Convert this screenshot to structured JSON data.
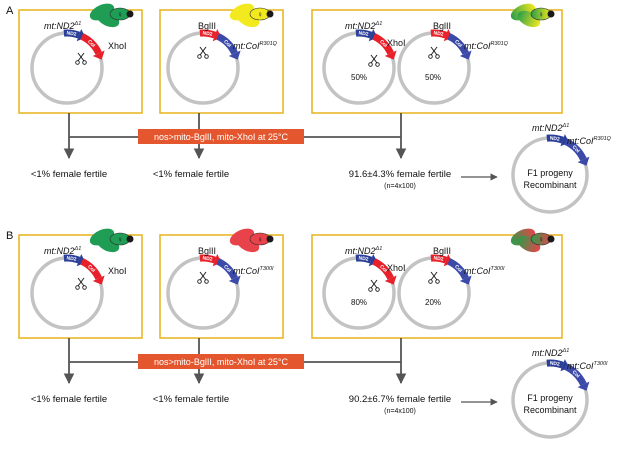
{
  "panels": {
    "A": {
      "label": "A",
      "box1": {
        "gene": "mt:ND2",
        "gene_sup": "del1",
        "site": "XhoI"
      },
      "box2": {
        "site": "BglII",
        "gene": "mt:CoI",
        "gene_sup": "R301Q"
      },
      "box3": {
        "gene_left": "mt:ND2",
        "gene_left_sup": "del1",
        "site_left": "XhoI",
        "site_right": "BglII",
        "gene_right": "mt:CoI",
        "gene_right_sup": "R301Q",
        "pct_left": "50%",
        "pct_right": "50%"
      },
      "banner": "nos>mito-BglII, mito-XhoI at 25°C",
      "outcome1": "<1% female fertile",
      "outcome2": "<1% female fertile",
      "outcome3": "91.6±4.3% female fertile",
      "outcome3_n": "(n=4x100)",
      "recombinant": {
        "gene_top": "mt:ND2",
        "gene_top_sup": "del1",
        "gene_right": "mt:CoI",
        "gene_right_sup": "R301Q",
        "line1": "F1 progeny",
        "line2": "Recombinant"
      }
    },
    "B": {
      "label": "B",
      "box1": {
        "gene": "mt:ND2",
        "gene_sup": "del1",
        "site": "XhoI"
      },
      "box2": {
        "site": "BglII",
        "gene": "mt:CoI",
        "gene_sup": "T300I"
      },
      "box3": {
        "gene_left": "mt:ND2",
        "gene_left_sup": "del1",
        "site_left": "XhoI",
        "site_right": "BglII",
        "gene_right": "mt:CoI",
        "gene_right_sup": "T300I",
        "pct_left": "80%",
        "pct_right": "20%"
      },
      "banner": "nos>mito-BglII, mito-XhoI at 25°C",
      "outcome1": "<1% female fertile",
      "outcome2": "<1% female fertile",
      "outcome3": "90.2±6.7% female fertile",
      "outcome3_n": "(n=4x100)",
      "recombinant": {
        "gene_top": "mt:ND2",
        "gene_top_sup": "del1",
        "gene_right": "mt:CoI",
        "gene_right_sup": "T300I",
        "line1": "F1 progeny",
        "line2": "Recombinant"
      }
    }
  },
  "segments": {
    "nd2": "ND2",
    "coi": "CoI"
  },
  "symbols": {
    "female": "♀",
    "delta": "Δ"
  },
  "colors": {
    "box_border": "#e7b21a",
    "banner": "#e4572e",
    "nd2": "#2b3f98",
    "coi_red": "#e8202a",
    "coi_blue": "#3b4aa8",
    "mtdna": "#c3c3c3",
    "arrow": "#555555",
    "fly_green": "#1f9d55",
    "fly_yellow": "#f2ea1f",
    "fly_red": "#e8434a",
    "fly_dark": "#1a1a1a"
  },
  "icons": [
    "scissors-icon",
    "female-symbol-icon",
    "fly-icon"
  ]
}
